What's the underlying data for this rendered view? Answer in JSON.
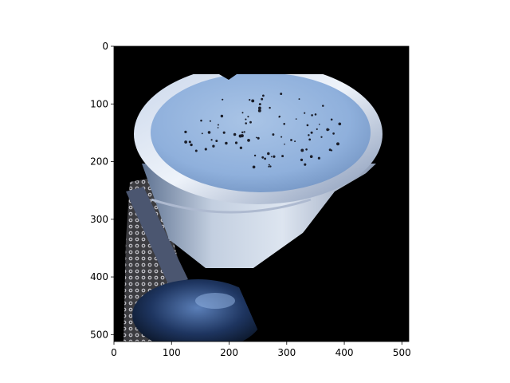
{
  "image_view": {
    "subject": "masked photo of a cup of light blue drink with dark seeds, a spoon and a lace doily on a black background",
    "background_color": "#000000",
    "x_ticks": [
      "0",
      "100",
      "200",
      "300",
      "400",
      "500"
    ],
    "y_ticks": [
      "0",
      "100",
      "200",
      "300",
      "400",
      "500"
    ],
    "extent": {
      "x": [
        0,
        512
      ],
      "y": [
        512,
        0
      ]
    }
  }
}
